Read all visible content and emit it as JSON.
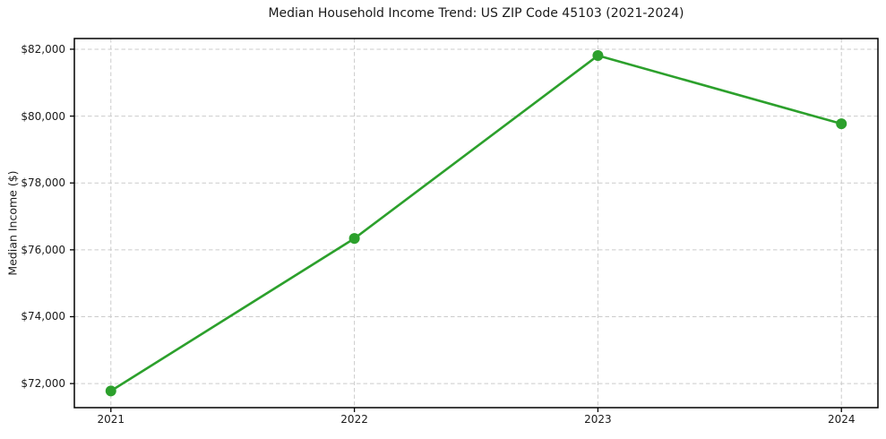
{
  "chart_data": {
    "type": "line",
    "title": "Median Household Income Trend: US ZIP Code 45103 (2021-2024)",
    "xlabel": "",
    "ylabel": "Median Income ($)",
    "x": [
      2021,
      2022,
      2023,
      2024
    ],
    "x_tick_labels": [
      "2021",
      "2022",
      "2023",
      "2024"
    ],
    "series": [
      {
        "name": "Median household income",
        "values": [
          71780,
          76340,
          81810,
          79770
        ]
      }
    ],
    "y_ticks": [
      {
        "value": 72000,
        "label": "$72,000"
      },
      {
        "value": 74000,
        "label": "$74,000"
      },
      {
        "value": 76000,
        "label": "$76,000"
      },
      {
        "value": 78000,
        "label": "$78,000"
      },
      {
        "value": 80000,
        "label": "$80,000"
      },
      {
        "value": 82000,
        "label": "$82,000"
      }
    ],
    "ylim": [
      71280,
      82320
    ],
    "xlim": [
      2020.85,
      2024.15
    ],
    "grid": true,
    "grid_style": "dashed",
    "legend": "none",
    "marker": "o",
    "colors": {
      "line": "#2ca02c",
      "marker": "#2ca02c",
      "grid": "#cbcbcb",
      "axis": "#000000",
      "text": "#1a1a1a",
      "background": "#ffffff"
    }
  }
}
